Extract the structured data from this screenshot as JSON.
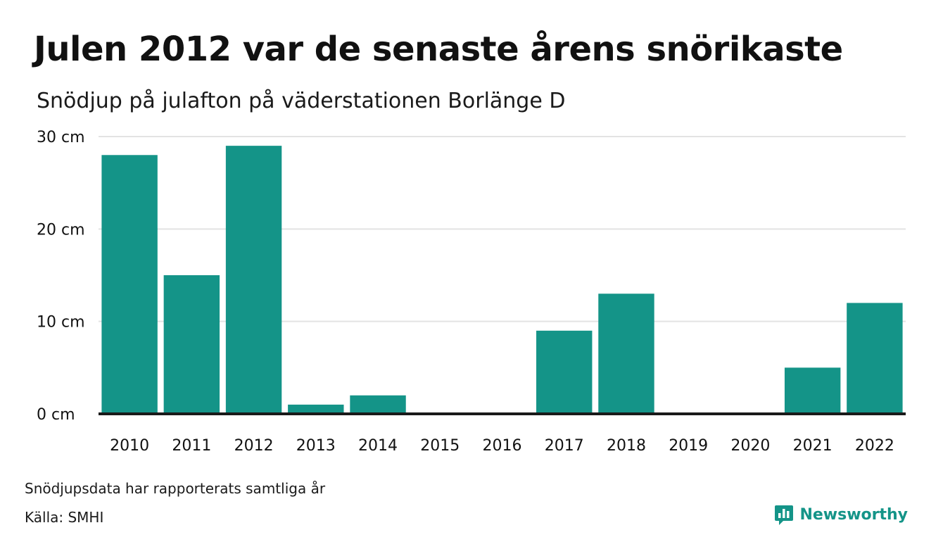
{
  "colors": {
    "bar": "#149488",
    "brand": "#149488",
    "grid": "#e3e3e3",
    "baseline": "#1a1a1a",
    "text": "#111111"
  },
  "brand": {
    "name": "Newsworthy",
    "icon": "newsworthy-logo-icon"
  },
  "notes": {
    "reporting": "Snödjupsdata har rapporterats samtliga år",
    "source": "Källa: SMHI"
  },
  "chart_data": {
    "type": "bar",
    "title": "Julen 2012 var de senaste årens snörikaste",
    "subtitle": "Snödjup på julafton på väderstationen Borlänge D",
    "categories": [
      "2010",
      "2011",
      "2012",
      "2013",
      "2014",
      "2015",
      "2016",
      "2017",
      "2018",
      "2019",
      "2020",
      "2021",
      "2022"
    ],
    "values": [
      28,
      15,
      29,
      1,
      2,
      0,
      0,
      9,
      13,
      0,
      0,
      5,
      12
    ],
    "unit": "cm",
    "ylim": [
      0,
      30
    ],
    "yticks": [
      0,
      10,
      20,
      30
    ],
    "ytick_labels": [
      "0 cm",
      "10 cm",
      "20 cm",
      "30 cm"
    ],
    "grid": true,
    "legend": "none"
  }
}
